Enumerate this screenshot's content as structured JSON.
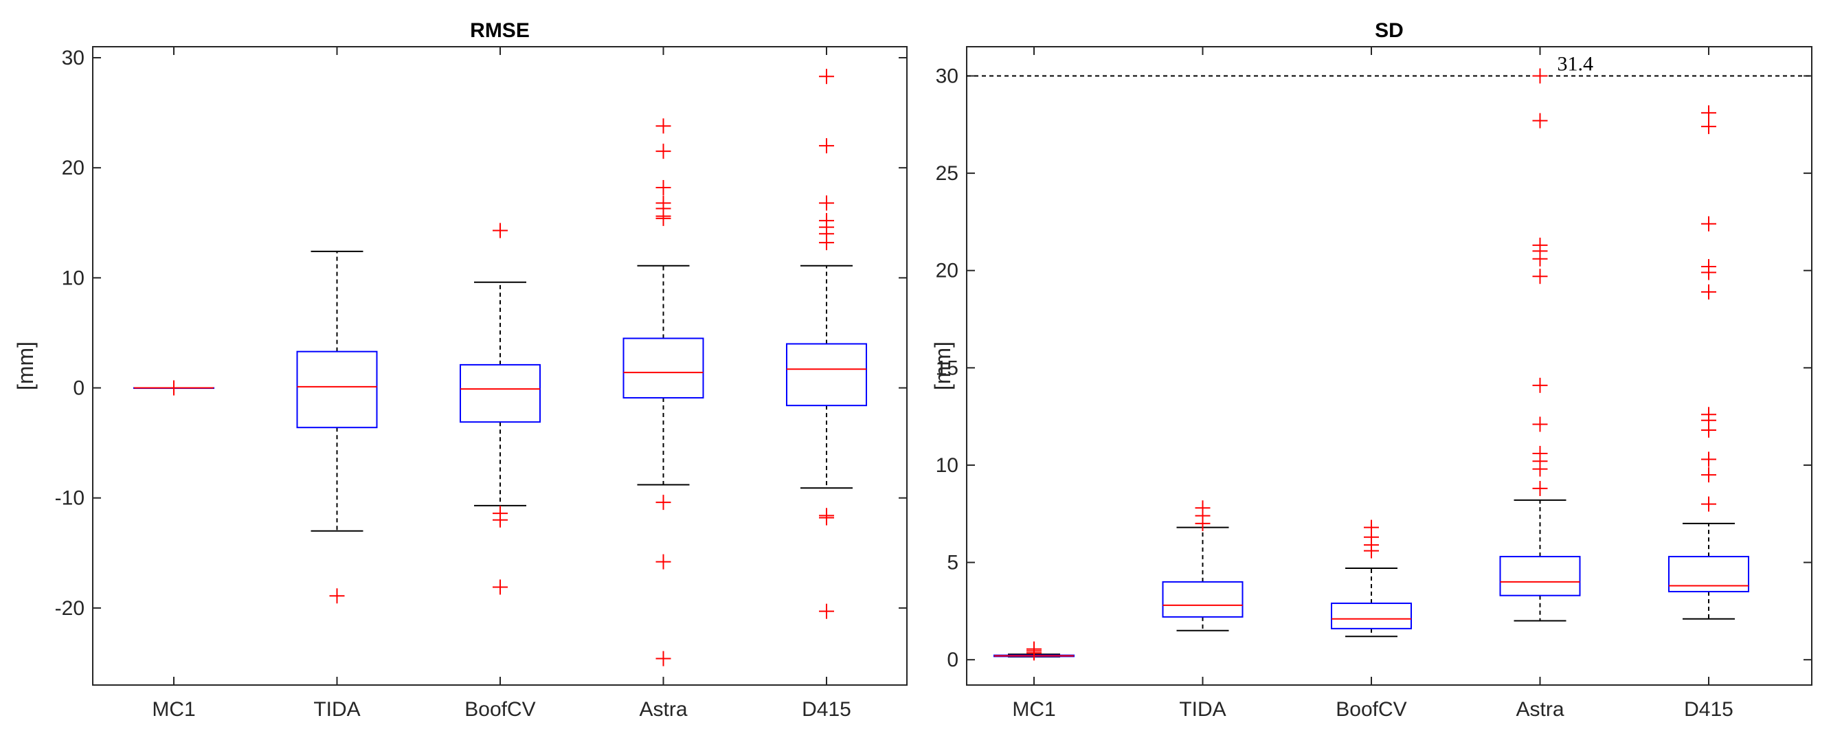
{
  "chart_data": [
    {
      "type": "boxplot",
      "title": "RMSE",
      "xlabel": "",
      "ylabel": "[mm]",
      "ylim": [
        -27,
        31
      ],
      "yticks": [
        -20,
        -10,
        0,
        10,
        20,
        30
      ],
      "ytick_labels": [
        "-20",
        "-10",
        "0",
        "10",
        "20",
        "30"
      ],
      "categories": [
        "MC1",
        "TIDA",
        "BoofCV",
        "Astra",
        "D415"
      ],
      "colors": {
        "box": "#0000ff",
        "median": "#ff0000",
        "whisker": "#000000",
        "outlier": "#ff0000"
      },
      "boxes": [
        {
          "whisker_low": 0,
          "q1": 0,
          "median": 0,
          "q3": 0,
          "whisker_high": 0,
          "outliers": [
            0
          ]
        },
        {
          "whisker_low": -13,
          "q1": -3.6,
          "median": 0.1,
          "q3": 3.3,
          "whisker_high": 12.4,
          "outliers": [
            -18.9
          ]
        },
        {
          "whisker_low": -10.7,
          "q1": -3.1,
          "median": -0.1,
          "q3": 2.1,
          "whisker_high": 9.6,
          "outliers": [
            14.3,
            -11.4,
            -12.0,
            -18.1
          ]
        },
        {
          "whisker_low": -8.8,
          "q1": -0.9,
          "median": 1.4,
          "q3": 4.5,
          "whisker_high": 11.1,
          "outliers": [
            23.8,
            21.5,
            18.2,
            16.8,
            16.3,
            15.6,
            15.4,
            -10.4,
            -15.8,
            -24.6
          ]
        },
        {
          "whisker_low": -9.1,
          "q1": -1.6,
          "median": 1.7,
          "q3": 4.0,
          "whisker_high": 11.1,
          "outliers": [
            28.3,
            22.0,
            16.8,
            15.2,
            14.6,
            14.0,
            13.2,
            -11.6,
            -11.8,
            -20.3
          ]
        }
      ]
    },
    {
      "type": "boxplot",
      "title": "SD",
      "xlabel": "",
      "ylabel": "[mm]",
      "ylim": [
        -1.3,
        31.5
      ],
      "yticks": [
        0,
        5,
        10,
        15,
        20,
        25,
        30
      ],
      "ytick_labels": [
        "0",
        "5",
        "10",
        "15",
        "20",
        "25",
        "30"
      ],
      "categories": [
        "MC1",
        "TIDA",
        "BoofCV",
        "Astra",
        "D415"
      ],
      "colors": {
        "box": "#0000ff",
        "median": "#ff0000",
        "whisker": "#000000",
        "outlier": "#ff0000",
        "refline": "#000000"
      },
      "reference_line": 30,
      "annotation": {
        "text": "31.4",
        "x_category": "Astra",
        "y": 30
      },
      "boxes": [
        {
          "whisker_low": 0.15,
          "q1": 0.17,
          "median": 0.2,
          "q3": 0.23,
          "whisker_high": 0.28,
          "outliers": [
            0.35,
            0.45,
            0.55
          ]
        },
        {
          "whisker_low": 1.5,
          "q1": 2.2,
          "median": 2.8,
          "q3": 4.0,
          "whisker_high": 6.8,
          "outliers": [
            7.0,
            7.4,
            7.8
          ]
        },
        {
          "whisker_low": 1.2,
          "q1": 1.6,
          "median": 2.1,
          "q3": 2.9,
          "whisker_high": 4.7,
          "outliers": [
            5.6,
            5.9,
            6.3,
            6.8
          ]
        },
        {
          "whisker_low": 2.0,
          "q1": 3.3,
          "median": 4.0,
          "q3": 5.3,
          "whisker_high": 8.2,
          "outliers": [
            30.0,
            27.7,
            21.3,
            21.0,
            20.6,
            19.7,
            14.1,
            12.1,
            10.6,
            10.2,
            9.8,
            8.8
          ]
        },
        {
          "whisker_low": 2.1,
          "q1": 3.5,
          "median": 3.8,
          "q3": 5.3,
          "whisker_high": 7.0,
          "outliers": [
            28.1,
            27.4,
            22.4,
            20.2,
            19.9,
            18.9,
            12.6,
            12.3,
            11.8,
            10.3,
            9.5,
            8.0
          ]
        }
      ]
    }
  ]
}
